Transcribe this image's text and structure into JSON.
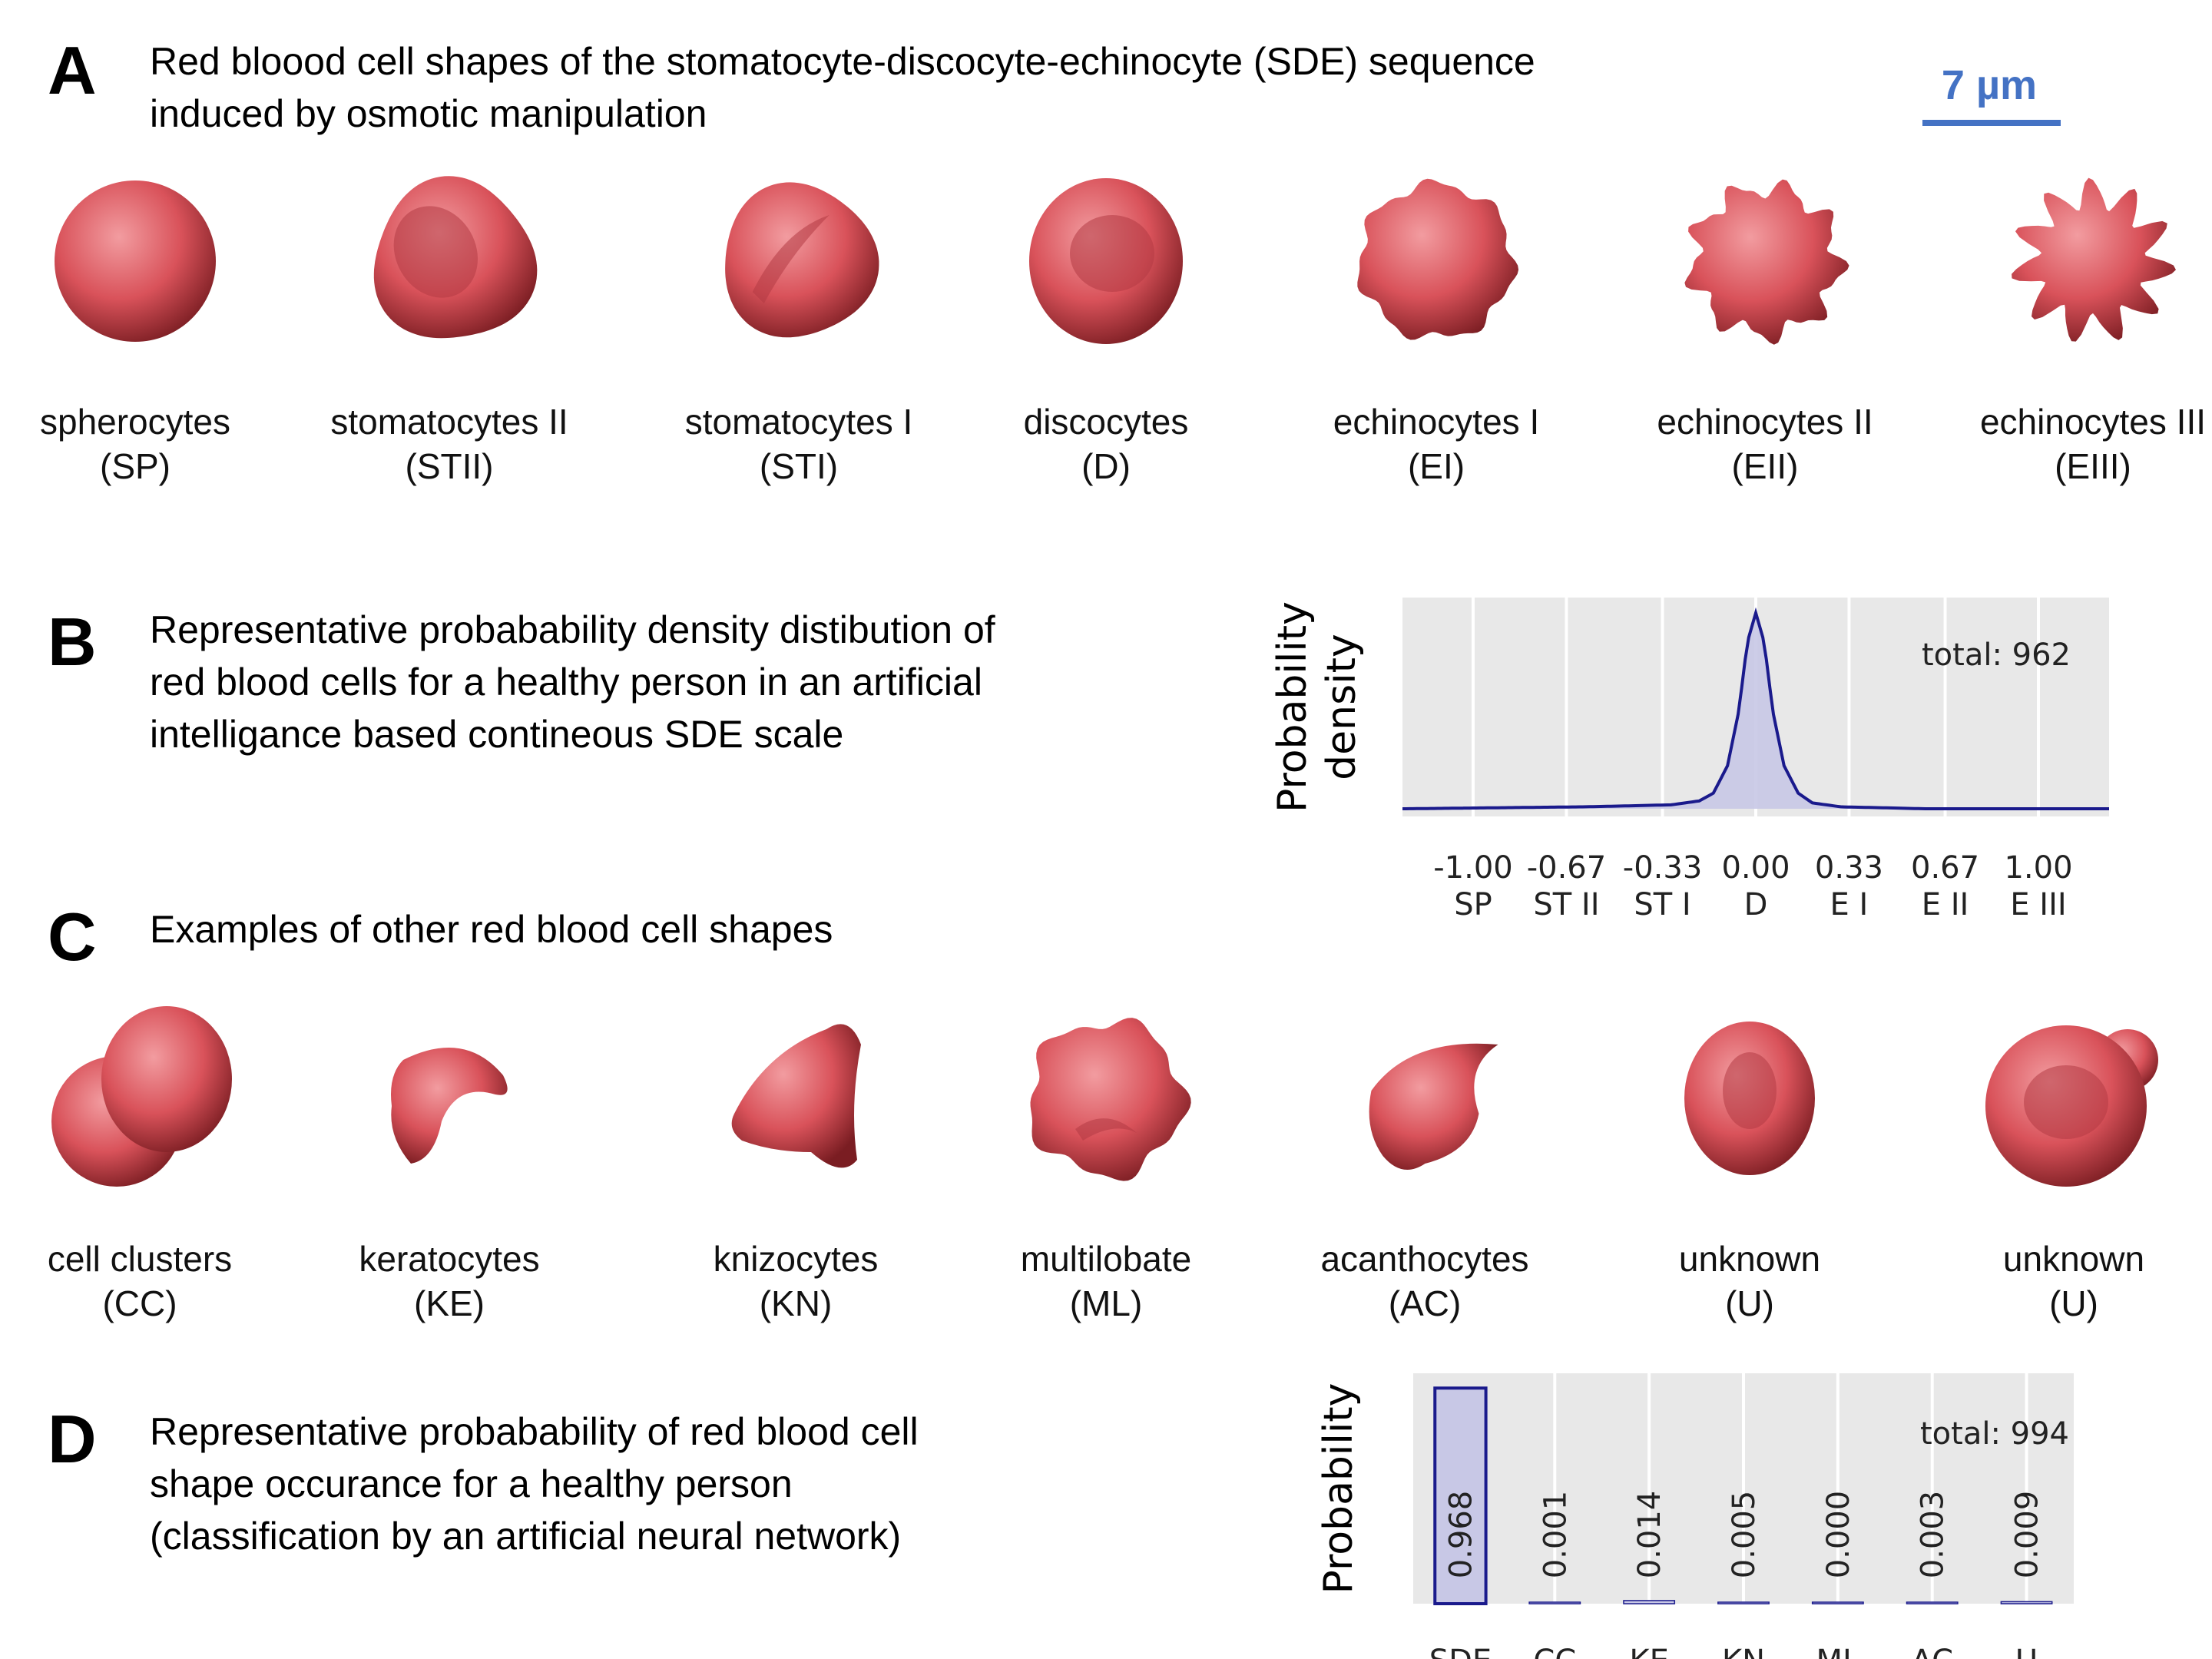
{
  "panels": {
    "A": {
      "letter": "A",
      "text": "Red bloood cell shapes of the stomatocyte-discocyte-echinocyte (SDE) sequence\ninduced by osmotic manipulation",
      "scale_bar": "7 µm",
      "cells": [
        {
          "name": "spherocytes",
          "abbr": "(SP)",
          "shape": "sphere"
        },
        {
          "name": "stomatocytes II",
          "abbr": "(STII)",
          "shape": "cup-deep"
        },
        {
          "name": "stomatocytes I",
          "abbr": "(STI)",
          "shape": "cup"
        },
        {
          "name": "discocytes",
          "abbr": "(D)",
          "shape": "disc"
        },
        {
          "name": "echinocytes I",
          "abbr": "(EI)",
          "shape": "bumpy"
        },
        {
          "name": "echinocytes II",
          "abbr": "(EII)",
          "shape": "lumpy"
        },
        {
          "name": "echinocytes III",
          "abbr": "(EIII)",
          "shape": "spiky"
        }
      ]
    },
    "B": {
      "letter": "B",
      "text": "Representative probabability density distibution of\nred blood cells for a healthy person in an artificial\nintelligance based contineous SDE scale"
    },
    "C": {
      "letter": "C",
      "text": "Examples of other red blood cell shapes",
      "cells": [
        {
          "name": "cell clusters",
          "abbr": "(CC)",
          "shape": "cluster"
        },
        {
          "name": "keratocytes",
          "abbr": "(KE)",
          "shape": "kerato"
        },
        {
          "name": "knizocytes",
          "abbr": "(KN)",
          "shape": "knizo"
        },
        {
          "name": "multilobate",
          "abbr": "(ML)",
          "shape": "multi"
        },
        {
          "name": "acanthocytes",
          "abbr": "(AC)",
          "shape": "acantho"
        },
        {
          "name": "unknown",
          "abbr": "(U)",
          "shape": "oval"
        },
        {
          "name": "unknown",
          "abbr": "(U)",
          "shape": "ring"
        }
      ]
    },
    "D": {
      "letter": "D",
      "text": "Representative probabability of red blood cell\nshape occurance for a healthy person\n(classification by an artificial neural network)"
    }
  },
  "colors": {
    "cell": "#d9525a",
    "cell_highlight": "#f29ca0",
    "cell_shadow": "#7a1d22",
    "plot_bg": "#e8e8e8",
    "series_line": "#1a1a8c",
    "series_fill": "#c8c8e6",
    "scale_bar": "#4472c4"
  },
  "chart_data": [
    {
      "type": "area",
      "ylabel": "Probability\ndensity",
      "annotation": "total: 962",
      "x_ticks": [
        -1.0,
        -0.67,
        -0.33,
        0.0,
        0.33,
        0.67,
        1.0
      ],
      "x_tick_labels": [
        "-1.00",
        "-0.67",
        "-0.33",
        "0.00",
        "0.33",
        "0.67",
        "1.00"
      ],
      "x_tick_sublabels": [
        "SP",
        "ST II",
        "ST I",
        "D",
        "E I",
        "E II",
        "E III"
      ],
      "xlim": [
        -1.25,
        1.25
      ],
      "grid": true,
      "x": [
        -1.25,
        -0.6,
        -0.3,
        -0.2,
        -0.15,
        -0.1,
        -0.06,
        -0.03,
        0.0,
        0.03,
        0.06,
        0.1,
        0.15,
        0.2,
        0.3,
        0.6,
        1.25
      ],
      "y": [
        0.0,
        0.01,
        0.02,
        0.04,
        0.08,
        0.22,
        0.5,
        0.85,
        1.0,
        0.85,
        0.5,
        0.22,
        0.08,
        0.03,
        0.01,
        0.0,
        0.0
      ]
    },
    {
      "type": "bar",
      "ylabel": "Probability",
      "annotation": "total: 994",
      "categories": [
        "SDE",
        "CC",
        "KE",
        "KN",
        "ML",
        "AC",
        "U"
      ],
      "values": [
        0.968,
        0.001,
        0.014,
        0.005,
        0.0,
        0.003,
        0.009
      ],
      "value_labels": [
        "0.968",
        "0.001",
        "0.014",
        "0.005",
        "0.000",
        "0.003",
        "0.009"
      ],
      "ylim": [
        0,
        1
      ],
      "grid": true
    }
  ]
}
